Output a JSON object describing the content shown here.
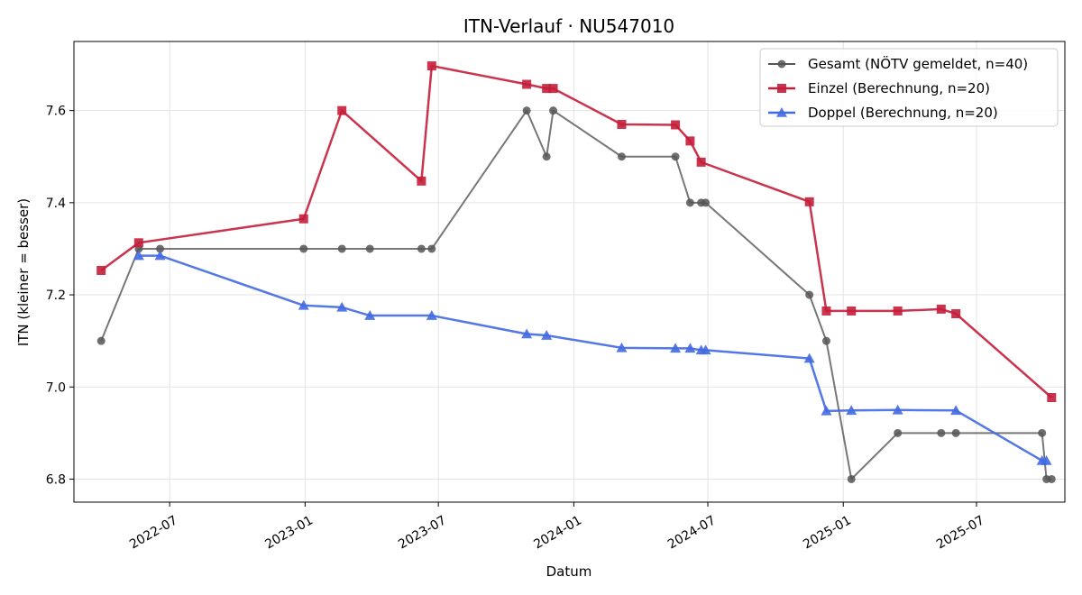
{
  "chart_data": {
    "type": "line",
    "title": "ITN-Verlauf · NU547010",
    "xlabel": "Datum",
    "ylabel": "ITN  (kleiner = besser)",
    "x_axis": "date",
    "xlim": [
      "2022-02-21",
      "2025-10-29"
    ],
    "ylim": [
      6.75,
      7.75
    ],
    "x_ticks": [
      {
        "date": "2022-07-01",
        "label": "2022-07"
      },
      {
        "date": "2023-01-01",
        "label": "2023-01"
      },
      {
        "date": "2023-07-01",
        "label": "2023-07"
      },
      {
        "date": "2024-01-01",
        "label": "2024-01"
      },
      {
        "date": "2024-07-01",
        "label": "2024-07"
      },
      {
        "date": "2025-01-01",
        "label": "2025-01"
      },
      {
        "date": "2025-07-01",
        "label": "2025-07"
      }
    ],
    "y_ticks": [
      {
        "value": 6.8,
        "label": "6.8"
      },
      {
        "value": 7.0,
        "label": "7.0"
      },
      {
        "value": 7.2,
        "label": "7.2"
      },
      {
        "value": 7.4,
        "label": "7.4"
      },
      {
        "value": 7.6,
        "label": "7.6"
      }
    ],
    "grid": true,
    "legend_position": "top-right",
    "series": [
      {
        "name": "Gesamt (NÖTV gemeldet, n=40)",
        "color": "#555555",
        "marker": "circle",
        "points": [
          [
            "2022-03-30",
            7.1
          ],
          [
            "2022-05-20",
            7.3
          ],
          [
            "2022-06-18",
            7.3
          ],
          [
            "2022-12-30",
            7.3
          ],
          [
            "2023-02-20",
            7.3
          ],
          [
            "2023-03-30",
            7.3
          ],
          [
            "2023-06-08",
            7.3
          ],
          [
            "2023-06-22",
            7.3
          ],
          [
            "2023-10-29",
            7.6
          ],
          [
            "2023-11-25",
            7.5
          ],
          [
            "2023-12-04",
            7.6
          ],
          [
            "2024-03-06",
            7.5
          ],
          [
            "2024-05-18",
            7.5
          ],
          [
            "2024-06-07",
            7.4
          ],
          [
            "2024-06-22",
            7.4
          ],
          [
            "2024-06-28",
            7.4
          ],
          [
            "2024-11-16",
            7.2
          ],
          [
            "2024-12-09",
            7.1
          ],
          [
            "2025-01-12",
            6.8
          ],
          [
            "2025-03-16",
            6.9
          ],
          [
            "2025-05-14",
            6.9
          ],
          [
            "2025-06-03",
            6.9
          ],
          [
            "2025-09-28",
            6.9
          ],
          [
            "2025-10-04",
            6.8
          ],
          [
            "2025-10-11",
            6.8
          ]
        ]
      },
      {
        "name": "Einzel (Berechnung, n=20)",
        "color": "#c41e3a",
        "marker": "square",
        "points": [
          [
            "2022-03-30",
            7.253
          ],
          [
            "2022-05-20",
            7.313
          ],
          [
            "2022-12-30",
            7.365
          ],
          [
            "2023-02-20",
            7.6
          ],
          [
            "2023-06-08",
            7.447
          ],
          [
            "2023-06-22",
            7.697
          ],
          [
            "2023-10-29",
            7.657
          ],
          [
            "2023-11-25",
            7.648
          ],
          [
            "2023-12-04",
            7.648
          ],
          [
            "2024-03-06",
            7.57
          ],
          [
            "2024-05-18",
            7.569
          ],
          [
            "2024-06-07",
            7.534
          ],
          [
            "2024-06-22",
            7.488
          ],
          [
            "2024-11-16",
            7.402
          ],
          [
            "2024-12-09",
            7.165
          ],
          [
            "2025-01-12",
            7.165
          ],
          [
            "2025-03-16",
            7.165
          ],
          [
            "2025-05-14",
            7.169
          ],
          [
            "2025-06-03",
            7.159
          ],
          [
            "2025-10-11",
            6.977
          ]
        ]
      },
      {
        "name": "Doppel (Berechnung, n=20)",
        "color": "#4169e1",
        "marker": "triangle",
        "points": [
          [
            "2022-05-20",
            7.285
          ],
          [
            "2022-06-18",
            7.285
          ],
          [
            "2022-12-30",
            7.177
          ],
          [
            "2023-02-20",
            7.173
          ],
          [
            "2023-03-30",
            7.155
          ],
          [
            "2023-06-22",
            7.155
          ],
          [
            "2023-10-29",
            7.115
          ],
          [
            "2023-11-25",
            7.112
          ],
          [
            "2024-03-06",
            7.085
          ],
          [
            "2024-05-18",
            7.084
          ],
          [
            "2024-06-07",
            7.084
          ],
          [
            "2024-06-22",
            7.08
          ],
          [
            "2024-06-28",
            7.08
          ],
          [
            "2024-11-16",
            7.062
          ],
          [
            "2024-12-09",
            6.948
          ],
          [
            "2025-01-12",
            6.949
          ],
          [
            "2025-03-16",
            6.95
          ],
          [
            "2025-06-03",
            6.949
          ],
          [
            "2025-09-28",
            6.84
          ],
          [
            "2025-10-04",
            6.84
          ]
        ]
      }
    ]
  }
}
